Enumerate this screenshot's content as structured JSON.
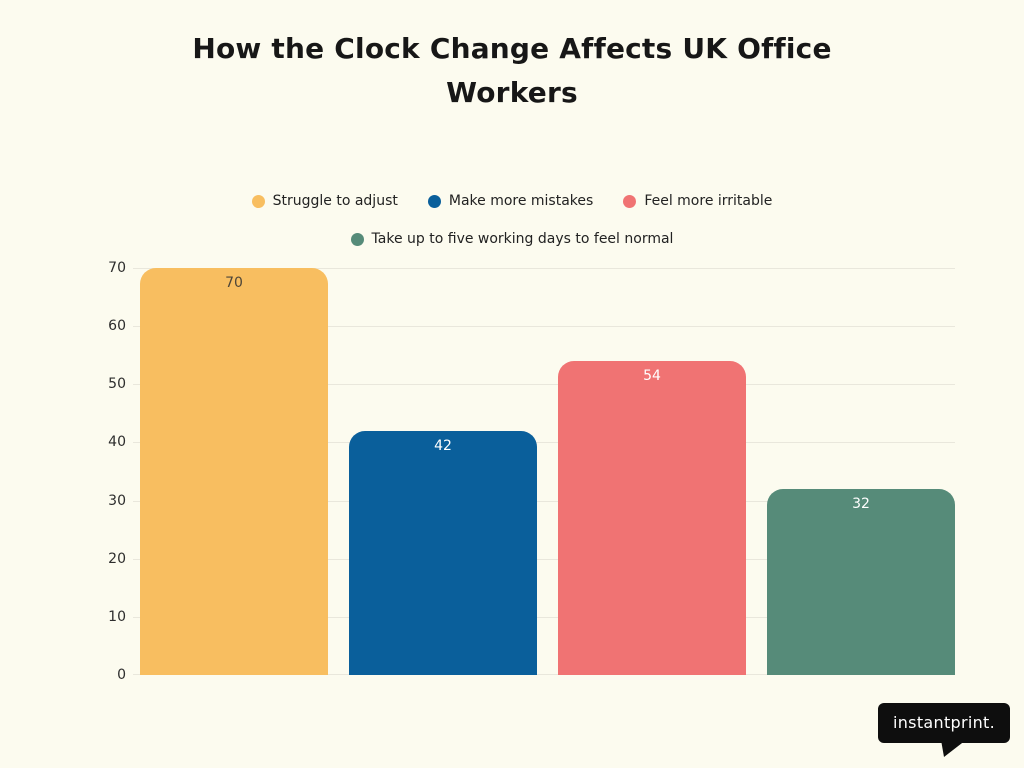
{
  "page": {
    "background": "#FCFBEF",
    "text_color": "#171717"
  },
  "chart_data": {
    "type": "bar",
    "title": "How the Clock Change Affects UK Office Workers",
    "categories": [
      "Struggle to adjust",
      "Make more mistakes",
      "Feel more irritable",
      "Take up to five working days to feel normal"
    ],
    "values": [
      70,
      42,
      54,
      32
    ],
    "bar_colors": [
      "#F8BE60",
      "#0A5F9B",
      "#F07373",
      "#568B79"
    ],
    "value_label_colors": [
      "#4E4639",
      "#FFFFFF",
      "#FFFFFF",
      "#FFFFFF"
    ],
    "xlabel": "",
    "ylabel": "",
    "ylim": [
      0,
      70
    ],
    "yticks": [
      0,
      10,
      20,
      30,
      40,
      50,
      60,
      70
    ],
    "grid": true,
    "gridline_color": "#E9E7DC",
    "legend_position": "top"
  },
  "logo": {
    "text": "instantprint."
  }
}
